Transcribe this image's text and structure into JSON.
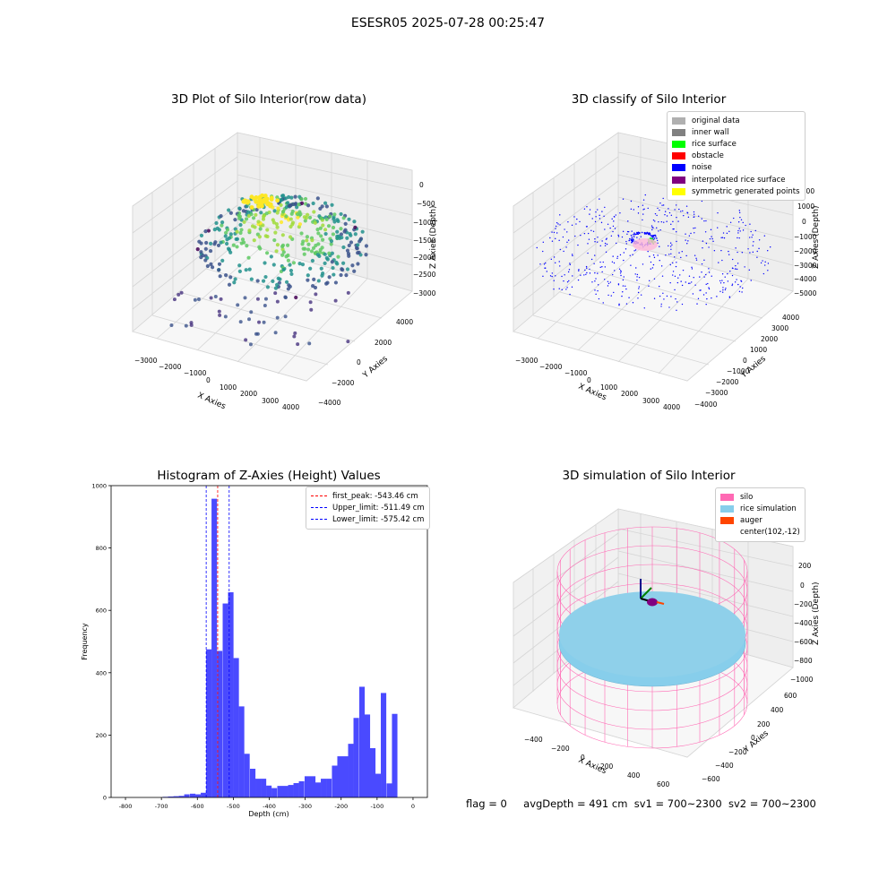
{
  "suptitle": "ESESR05 2025-07-28 00:25:47",
  "footer": {
    "flag": "flag = 0",
    "avg_depth": "avgDepth = 491 cm",
    "sv1": "sv1 = 700~2300",
    "sv2": "sv2 = 700~2300"
  },
  "colors": {
    "hist_bar": "#4a4aff",
    "peak_line": "#ff0000",
    "limit_line": "#0000ff",
    "silo": "#ff69b4",
    "rice": "#87ceeb",
    "auger": "#ff4500"
  },
  "panels": {
    "raw": {
      "title": "3D Plot of Silo Interior(row data)",
      "xlabel": "X Axies",
      "ylabel": "Y Axies",
      "zlabel": "Z Axies (Depth)",
      "xticks": [
        "−3000",
        "−2000",
        "−1000",
        "0",
        "1000",
        "2000",
        "3000",
        "4000"
      ],
      "yticks": [
        "4000",
        "2000",
        "0",
        "−2000",
        "−4000"
      ],
      "zticks": [
        "0",
        "−500",
        "−1000",
        "−1500",
        "−2000",
        "−2500",
        "−3000"
      ]
    },
    "classify": {
      "title": "3D classify of Silo Interior",
      "xlabel": "X Axies",
      "ylabel": "Y Axies",
      "zlabel": "Z Axies (Depth)",
      "xticks": [
        "−3000",
        "−2000",
        "−1000",
        "0",
        "1000",
        "2000",
        "3000",
        "4000"
      ],
      "yticks": [
        "4000",
        "3000",
        "2000",
        "1000",
        "0",
        "−1000",
        "−2000",
        "−3000",
        "−4000"
      ],
      "zticks": [
        "2000",
        "1000",
        "0",
        "−1000",
        "−2000",
        "−3000",
        "−4000",
        "−5000"
      ],
      "legend": [
        {
          "label": "original data",
          "color": "#b0b0b0"
        },
        {
          "label": "inner wall",
          "color": "#808080"
        },
        {
          "label": "rice surface",
          "color": "#00ff00"
        },
        {
          "label": "obstacle",
          "color": "#ff0000"
        },
        {
          "label": "noise",
          "color": "#0000ff"
        },
        {
          "label": "interpolated rice surface",
          "color": "#800080"
        },
        {
          "label": "symmetric generated points",
          "color": "#ffff00"
        }
      ]
    },
    "simulation": {
      "title": "3D simulation of Silo Interior",
      "xlabel": "X Axies",
      "ylabel": "Y Axies",
      "zlabel": "Z Axies (Depth)",
      "xticks": [
        "−400",
        "−200",
        "0",
        "200",
        "400",
        "600"
      ],
      "yticks": [
        "600",
        "400",
        "200",
        "0",
        "−200",
        "−400",
        "−600"
      ],
      "zticks": [
        "200",
        "0",
        "−200",
        "−400",
        "−600",
        "−800",
        "−1000"
      ],
      "legend": [
        {
          "label": "silo",
          "color": "#ff69b4"
        },
        {
          "label": "rice simulation",
          "color": "#87ceeb"
        },
        {
          "label": "auger",
          "color": "#ff4500"
        },
        {
          "label": "center(102,-12)",
          "color": "#ffffff"
        }
      ]
    }
  },
  "chart_data": {
    "type": "bar",
    "title": "Histogram of Z-Axies (Height) Values",
    "xlabel": "Depth (cm)",
    "ylabel": "Frequency",
    "xlim": [
      -840,
      40
    ],
    "ylim": [
      0,
      1000
    ],
    "xticks": [
      -800,
      -700,
      -600,
      -500,
      -400,
      -300,
      -200,
      -100,
      0
    ],
    "yticks": [
      0,
      200,
      400,
      600,
      800,
      1000
    ],
    "bin_width": 15.2,
    "bins": [
      {
        "x": -689,
        "v": 2
      },
      {
        "x": -674,
        "v": 3
      },
      {
        "x": -659,
        "v": 4
      },
      {
        "x": -644,
        "v": 5
      },
      {
        "x": -629,
        "v": 10
      },
      {
        "x": -613,
        "v": 12
      },
      {
        "x": -598,
        "v": 10
      },
      {
        "x": -583,
        "v": 15
      },
      {
        "x": -568,
        "v": 475
      },
      {
        "x": -553,
        "v": 958
      },
      {
        "x": -538,
        "v": 470
      },
      {
        "x": -522,
        "v": 622
      },
      {
        "x": -507,
        "v": 658
      },
      {
        "x": -492,
        "v": 447
      },
      {
        "x": -477,
        "v": 292
      },
      {
        "x": -462,
        "v": 140
      },
      {
        "x": -446,
        "v": 92
      },
      {
        "x": -431,
        "v": 60
      },
      {
        "x": -416,
        "v": 60
      },
      {
        "x": -401,
        "v": 38
      },
      {
        "x": -386,
        "v": 30
      },
      {
        "x": -370,
        "v": 37
      },
      {
        "x": -355,
        "v": 37
      },
      {
        "x": -340,
        "v": 40
      },
      {
        "x": -325,
        "v": 46
      },
      {
        "x": -310,
        "v": 52
      },
      {
        "x": -294,
        "v": 68
      },
      {
        "x": -279,
        "v": 68
      },
      {
        "x": -264,
        "v": 48
      },
      {
        "x": -249,
        "v": 60
      },
      {
        "x": -234,
        "v": 60
      },
      {
        "x": -218,
        "v": 102
      },
      {
        "x": -203,
        "v": 132
      },
      {
        "x": -188,
        "v": 132
      },
      {
        "x": -173,
        "v": 172
      },
      {
        "x": -158,
        "v": 255
      },
      {
        "x": -142,
        "v": 355
      },
      {
        "x": -127,
        "v": 266
      },
      {
        "x": -112,
        "v": 158
      },
      {
        "x": -97,
        "v": 76
      },
      {
        "x": -82,
        "v": 335
      },
      {
        "x": -66,
        "v": 45
      },
      {
        "x": -51,
        "v": 268
      }
    ],
    "lines": [
      {
        "label": "first_peak: -543.46 cm",
        "x": -543.46,
        "color": "#ff0000"
      },
      {
        "label": "Upper_limit: -511.49 cm",
        "x": -511.49,
        "color": "#0000ff"
      },
      {
        "label": "Lower_limit: -575.42 cm",
        "x": -575.42,
        "color": "#0000ff"
      }
    ]
  }
}
